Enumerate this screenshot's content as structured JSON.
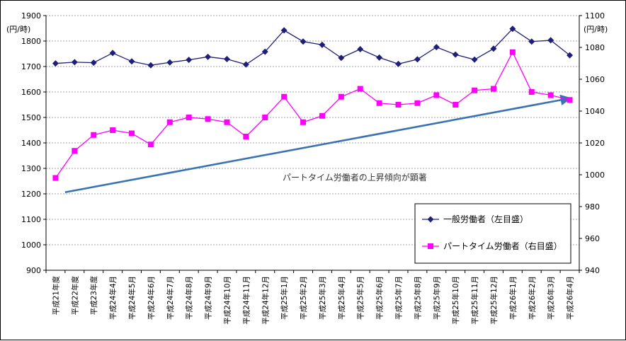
{
  "chart_data": {
    "type": "line",
    "title": "",
    "left_axis": {
      "unit": "(円/時)",
      "ylim": [
        900,
        1900
      ],
      "ticks": [
        900,
        1000,
        1100,
        1200,
        1300,
        1400,
        1500,
        1600,
        1700,
        1800,
        1900
      ]
    },
    "right_axis": {
      "unit": "(円/時)",
      "ylim": [
        940,
        1100
      ],
      "ticks": [
        940,
        960,
        980,
        1000,
        1020,
        1040,
        1060,
        1080,
        1100
      ]
    },
    "categories": [
      "平成21年度",
      "平成22年度",
      "平成23年度",
      "平成24年4月",
      "平成24年5月",
      "平成24年6月",
      "平成24年7月",
      "平成24年8月",
      "平成24年9月",
      "平成24年10月",
      "平成24年11月",
      "平成24年12月",
      "平成25年1月",
      "平成25年2月",
      "平成25年3月",
      "平成25年4月",
      "平成25年5月",
      "平成25年6月",
      "平成25年7月",
      "平成25年8月",
      "平成25年9月",
      "平成25年10月",
      "平成25年11月",
      "平成25年12月",
      "平成26年1月",
      "平成26年2月",
      "平成26年3月",
      "平成26年4月"
    ],
    "series": [
      {
        "name": "一般労働者（左目盛）",
        "axis": "left",
        "color": "#1F1F7A",
        "marker": "diamond",
        "values": [
          1712,
          1717,
          1715,
          1753,
          1720,
          1705,
          1716,
          1726,
          1738,
          1729,
          1708,
          1758,
          1842,
          1798,
          1785,
          1734,
          1768,
          1735,
          1710,
          1728,
          1776,
          1747,
          1727,
          1770,
          1848,
          1798,
          1803,
          1744
        ]
      },
      {
        "name": "パートタイム労働者（右目盛）",
        "axis": "right",
        "color": "#FF00FF",
        "marker": "square",
        "values": [
          998,
          1015,
          1025,
          1028,
          1026,
          1019,
          1033,
          1036,
          1035,
          1033,
          1024,
          1036,
          1049,
          1033,
          1037,
          1049,
          1054,
          1045,
          1044,
          1045,
          1050,
          1044,
          1053,
          1054,
          1077,
          1052,
          1050,
          1047
        ]
      }
    ],
    "annotation": "パートタイム労働者の上昇傾向が顕著",
    "trend_arrow": {
      "color": "#3A73B5",
      "from_index": 0.5,
      "from_value_right": 989,
      "to_index": 27,
      "to_value_right": 1048
    },
    "legend": {
      "placement": "bottom-right",
      "items": [
        "一般労働者（左目盛）",
        "パートタイム労働者（右目盛）"
      ]
    },
    "grid": true
  }
}
